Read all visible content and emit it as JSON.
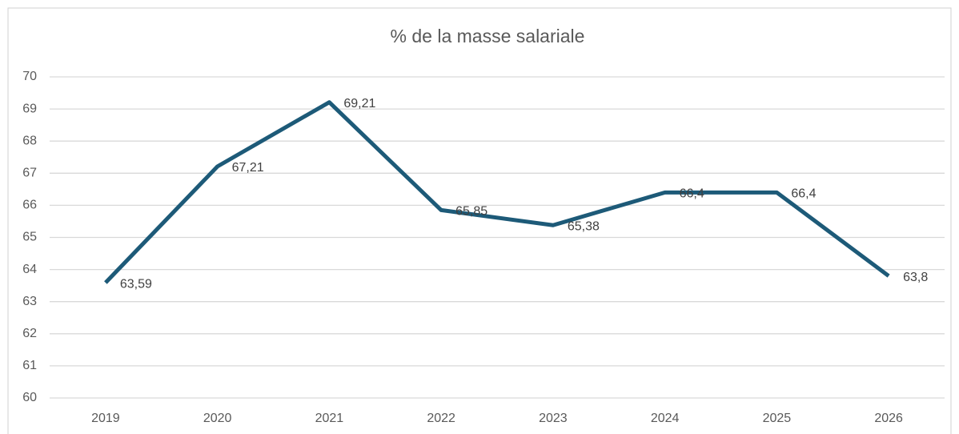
{
  "chart_data": {
    "type": "line",
    "title": "% de la masse salariale",
    "categories": [
      "2019",
      "2020",
      "2021",
      "2022",
      "2023",
      "2024",
      "2025",
      "2026"
    ],
    "series": [
      {
        "name": "% de la masse salariale",
        "color": "#1d5a78",
        "values": [
          63.59,
          67.21,
          69.21,
          65.85,
          65.38,
          66.4,
          66.4,
          63.8
        ],
        "value_labels": [
          "63,59",
          "67,21",
          "69,21",
          "65,85",
          "65,38",
          "66,4",
          "66,4",
          "63,8"
        ]
      }
    ],
    "ylim": [
      60,
      70
    ],
    "yticks": [
      60,
      61,
      62,
      63,
      64,
      65,
      66,
      67,
      68,
      69,
      70
    ],
    "grid": true
  }
}
